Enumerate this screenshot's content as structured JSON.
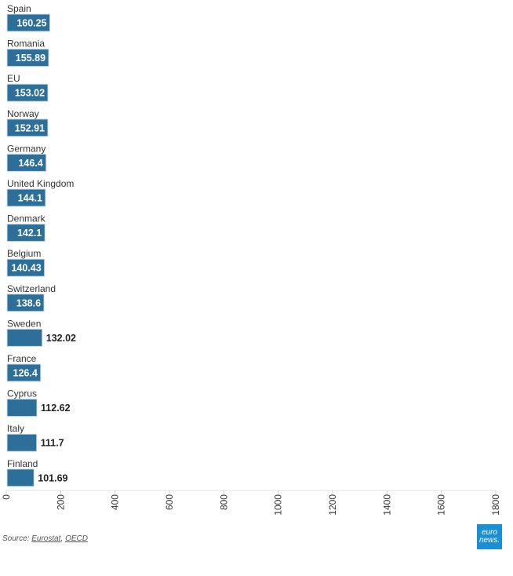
{
  "chart_data": {
    "type": "bar",
    "orientation": "horizontal",
    "categories": [
      "Spain",
      "Romania",
      "EU",
      "Norway",
      "Germany",
      "United Kingdom",
      "Denmark",
      "Belgium",
      "Switzerland",
      "Sweden",
      "France",
      "Cyprus",
      "Italy",
      "Finland"
    ],
    "values": [
      160.25,
      155.89,
      153.02,
      152.91,
      146.4,
      144.1,
      142.1,
      140.43,
      138.6,
      132.02,
      126.4,
      112.62,
      111.7,
      101.69
    ],
    "value_labels": [
      "160.25",
      "155.89",
      "153.02",
      "152.91",
      "146.4",
      "144.1",
      "142.1",
      "140.43",
      "138.6",
      "132.02",
      "126.4",
      "112.62",
      "111.7",
      "101.69"
    ],
    "xlim": [
      0,
      1800
    ],
    "xticks": [
      "0",
      "200",
      "400",
      "600",
      "800",
      "1000",
      "1200",
      "1400",
      "1600",
      "1800"
    ],
    "bar_color": "#2e6f99",
    "grid": false
  },
  "source": {
    "prefix": "Source: ",
    "links": [
      "Eurostat",
      "OECD"
    ],
    "separator": ", "
  },
  "logo": {
    "line1": "euro",
    "line2": "news."
  }
}
